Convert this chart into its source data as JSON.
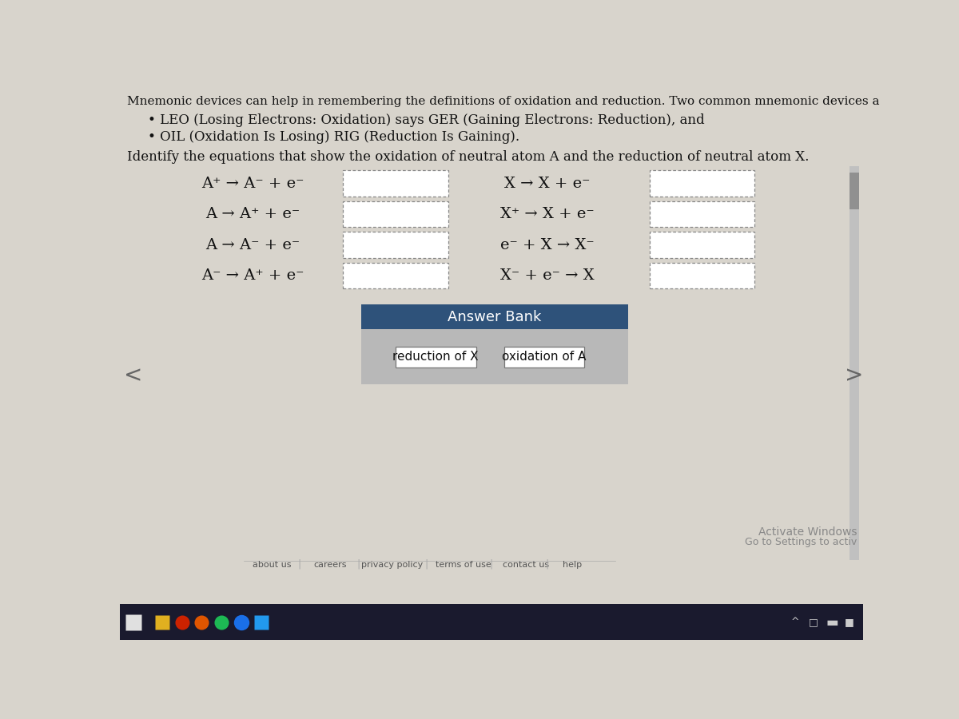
{
  "page_bg": "#d8d4cc",
  "title_text": "Mnemonic devices can help in remembering the definitions of oxidation and reduction. Two common mnemonic devices a",
  "bullet1": "LEO (Losing Electrons: Oxidation) says GER (Gaining Electrons: Reduction), and",
  "bullet2": "OIL (Oxidation Is Losing) RIG (Reduction Is Gaining).",
  "identify_text": "Identify the equations that show the oxidation of neutral atom A and the reduction of neutral atom X.",
  "eq_left_raw": [
    [
      "A",
      "+",
      "→",
      "A",
      "⁻",
      "+",
      "e",
      "⁻"
    ],
    [
      "A",
      "",
      "→",
      "A",
      "+",
      "+",
      "e",
      "⁻"
    ],
    [
      "A",
      "",
      "→",
      "A",
      "⁻",
      "+",
      "e",
      "⁻"
    ],
    [
      "A",
      "⁻",
      "→",
      "A",
      "+",
      "+",
      "e",
      "⁻"
    ]
  ],
  "eq_right_raw": [
    [
      "X",
      "",
      "→",
      "X",
      "",
      "+",
      "e",
      "⁻"
    ],
    [
      "X",
      "+",
      "→",
      "X",
      "",
      "+",
      "e",
      "⁻"
    ],
    [
      "e",
      "⁻",
      "+",
      "X",
      "",
      "→",
      "X",
      "⁻"
    ],
    [
      "X",
      "⁻",
      "+",
      "e",
      "⁻",
      "→",
      "X",
      ""
    ]
  ],
  "equations_left_display": [
    "A⁺ → A⁻ + e⁻",
    "A → A⁺ + e⁻",
    "A → A⁻ + e⁻",
    "A⁻ → A⁺ + e⁻"
  ],
  "equations_right_display": [
    "X → X + e⁻",
    "X⁺ → X + e⁻",
    "e⁻ + X → X⁻",
    "X⁻ + e⁻ → X"
  ],
  "answer_bank_header": "Answer Bank",
  "answer_bank_header_bg": "#2e527a",
  "answer_bank_body_bg": "#b8b8b8",
  "answer1": "reduction of X",
  "answer2": "oxidation of A",
  "footer_items": [
    "about us",
    "careers",
    "privacy policy",
    "terms of use",
    "contact us",
    "help"
  ],
  "activate_windows": "Activate Windows",
  "go_to_settings": "Go to Settings to activ",
  "taskbar_bg": "#1a1a2e",
  "scrollbar_track": "#c0c0c0",
  "scrollbar_thumb": "#909090"
}
